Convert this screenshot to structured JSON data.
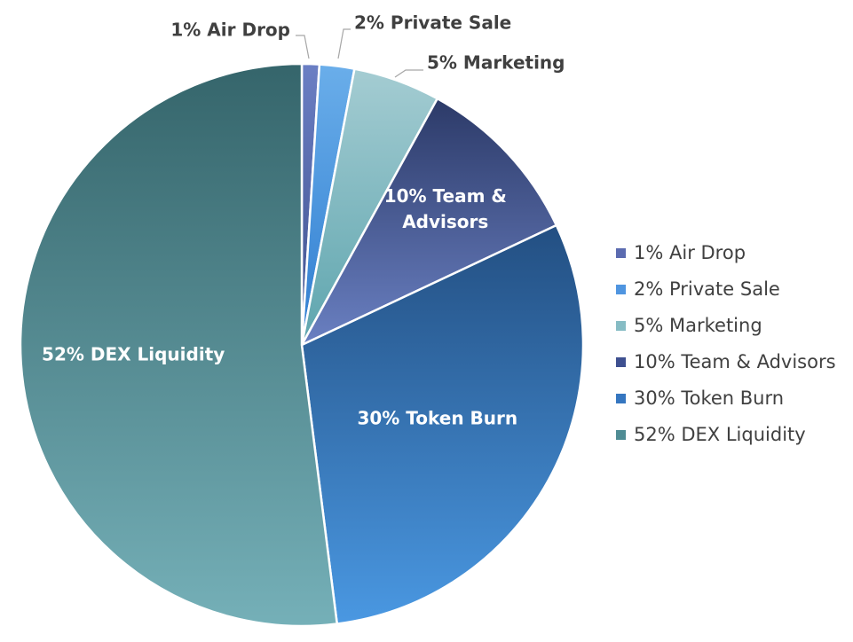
{
  "chart_data": {
    "type": "pie",
    "title": "",
    "start_angle_deg": 0,
    "direction": "clockwise",
    "slices": [
      {
        "name": "Air Drop",
        "value": 1,
        "label": "1% Air Drop",
        "legend": "1% Air Drop",
        "label_position": "outside",
        "color_top": "#6b7fc4",
        "color_bottom": "#3f4f8c",
        "legend_color": "#5b6bb0"
      },
      {
        "name": "Private Sale",
        "value": 2,
        "label": "2% Private Sale",
        "legend": "2% Private Sale",
        "label_position": "outside",
        "color_top": "#6aaeea",
        "color_bottom": "#2f7dd0",
        "legend_color": "#4f95e0"
      },
      {
        "name": "Marketing",
        "value": 5,
        "label": "5% Marketing",
        "legend": "5% Marketing",
        "label_position": "outside",
        "color_top": "#a4ccd2",
        "color_bottom": "#5ea5ae",
        "legend_color": "#86bcc4"
      },
      {
        "name": "Team & Advisors",
        "value": 10,
        "label_lines": [
          "10% Team &",
          "Advisors"
        ],
        "legend": "10% Team & Advisors",
        "label_position": "inside",
        "color_top": "#2c3a68",
        "color_bottom": "#6a80c2",
        "legend_color": "#3e5090"
      },
      {
        "name": "Token Burn",
        "value": 30,
        "label_lines": [
          "30% Token Burn"
        ],
        "legend": "30% Token Burn",
        "label_position": "inside",
        "color_top": "#234f82",
        "color_bottom": "#4a98e2",
        "legend_color": "#3576c0"
      },
      {
        "name": "DEX Liquidity",
        "value": 52,
        "label_lines": [
          "52% DEX Liquidity"
        ],
        "legend": "52% DEX Liquidity",
        "label_position": "inside",
        "color_top": "#35656b",
        "color_bottom": "#75b0b8",
        "legend_color": "#4f8c94"
      }
    ],
    "legend_position": "right"
  }
}
